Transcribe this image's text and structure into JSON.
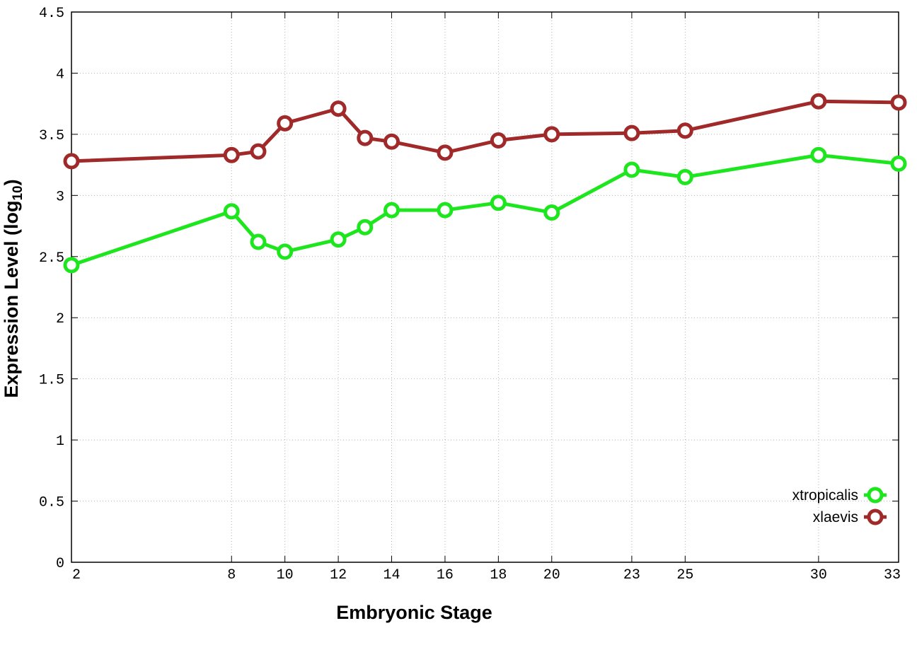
{
  "chart_data": {
    "type": "line",
    "title": "",
    "xlabel": "Embryonic Stage",
    "ylabel": {
      "main": "Expression Level (log",
      "sub": "10",
      "close": ")"
    },
    "x": [
      2,
      8,
      9,
      10,
      12,
      13,
      14,
      16,
      18,
      20,
      23,
      25,
      30,
      33
    ],
    "xticks": [
      2,
      8,
      10,
      12,
      14,
      16,
      18,
      20,
      23,
      25,
      30,
      33
    ],
    "xticklabels": [
      "2",
      "8",
      "10",
      "12",
      "14",
      "16",
      "18",
      "20",
      "23",
      "25",
      "30",
      "33"
    ],
    "xlim": [
      2,
      33
    ],
    "yticks": [
      0,
      0.5,
      1,
      1.5,
      2,
      2.5,
      3,
      3.5,
      4,
      4.5
    ],
    "yticklabels": [
      "0",
      "0.5",
      "1",
      "1.5",
      "2",
      "2.5",
      "3",
      "3.5",
      "4",
      "4.5"
    ],
    "ylim": [
      0,
      4.5
    ],
    "grid": true,
    "legend_position": "bottom-right",
    "series": [
      {
        "name": "xtropicalis",
        "color": "#1ee61e",
        "values": [
          2.43,
          2.87,
          2.62,
          2.54,
          2.64,
          2.74,
          2.88,
          2.88,
          2.94,
          2.86,
          3.21,
          3.15,
          3.33,
          3.26
        ]
      },
      {
        "name": "xlaevis",
        "color": "#a02a2a",
        "values": [
          3.28,
          3.33,
          3.36,
          3.59,
          3.71,
          3.47,
          3.44,
          3.35,
          3.45,
          3.5,
          3.51,
          3.53,
          3.77,
          3.76
        ]
      }
    ]
  }
}
